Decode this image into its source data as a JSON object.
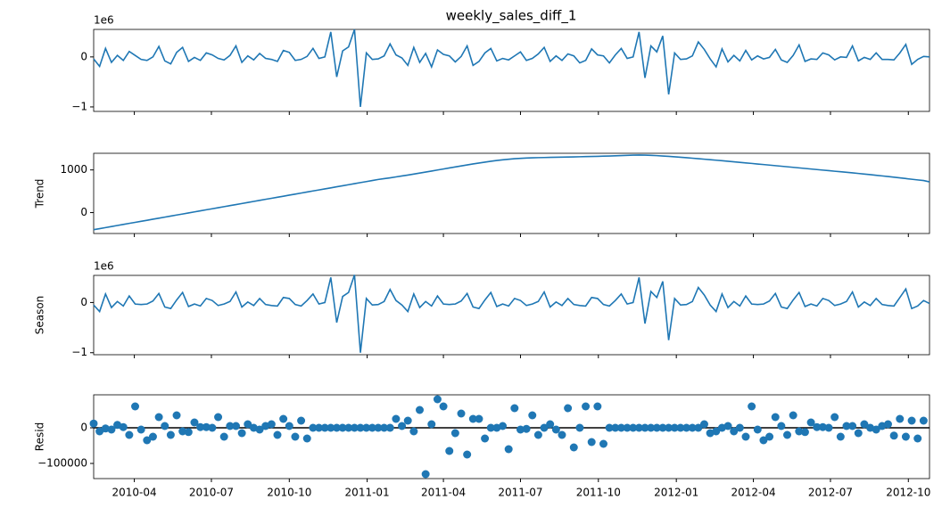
{
  "chart_data": [
    {
      "type": "line",
      "title": "weekly_sales_diff_1",
      "y_offset_label": "1e6",
      "color": "#1f77b4",
      "ylim": [
        -1.09,
        0.55
      ],
      "yticks": [
        {
          "value": -1,
          "label": "−1"
        },
        0
      ],
      "values": [
        -0.04,
        -0.19,
        0.17,
        -0.11,
        0.03,
        -0.07,
        0.11,
        0.03,
        -0.05,
        -0.07,
        0.0,
        0.21,
        -0.08,
        -0.14,
        0.09,
        0.19,
        -0.09,
        -0.01,
        -0.07,
        0.08,
        0.04,
        -0.03,
        -0.06,
        0.03,
        0.22,
        -0.11,
        0.02,
        -0.06,
        0.07,
        -0.03,
        -0.05,
        -0.09,
        0.13,
        0.09,
        -0.07,
        -0.05,
        0.01,
        0.17,
        -0.03,
        0.0,
        0.5,
        -0.4,
        0.12,
        0.2,
        0.55,
        -1.0,
        0.08,
        -0.05,
        -0.04,
        0.02,
        0.26,
        0.04,
        -0.02,
        -0.17,
        0.19,
        -0.11,
        0.07,
        -0.2,
        0.14,
        0.05,
        0.02,
        -0.1,
        0.01,
        0.22,
        -0.17,
        -0.09,
        0.08,
        0.17,
        -0.08,
        -0.03,
        -0.06,
        0.02,
        0.1,
        -0.07,
        -0.03,
        0.06,
        0.19,
        -0.09,
        0.02,
        -0.07,
        0.06,
        0.02,
        -0.12,
        -0.07,
        0.16,
        0.04,
        0.02,
        -0.12,
        0.04,
        0.17,
        -0.03,
        0.0,
        0.5,
        -0.42,
        0.22,
        0.1,
        0.42,
        -0.75,
        0.08,
        -0.05,
        -0.04,
        0.02,
        0.3,
        0.15,
        -0.04,
        -0.2,
        0.16,
        -0.1,
        0.03,
        -0.08,
        0.13,
        -0.06,
        0.02,
        -0.04,
        -0.01,
        0.15,
        -0.06,
        -0.11,
        0.03,
        0.24,
        -0.09,
        -0.04,
        -0.05,
        0.08,
        0.04,
        -0.06,
        0.0,
        -0.01,
        0.22,
        -0.08,
        -0.01,
        -0.05,
        0.08,
        -0.05,
        -0.05,
        -0.06,
        0.08,
        0.25,
        -0.15,
        -0.05,
        0.01,
        0.0
      ]
    },
    {
      "type": "line",
      "ylabel": "Trend",
      "color": "#1f77b4",
      "ylim": [
        -490,
        1390
      ],
      "yticks": [
        0,
        1000
      ],
      "values": [
        -400,
        -376,
        -351,
        -327,
        -302,
        -278,
        -253,
        -229,
        -204,
        -180,
        -155,
        -131,
        -106,
        -82,
        -57,
        -33,
        -8,
        17,
        41,
        66,
        90,
        115,
        139,
        164,
        188,
        213,
        237,
        262,
        286,
        311,
        335,
        360,
        384,
        409,
        433,
        458,
        482,
        507,
        531,
        556,
        580,
        605,
        629,
        654,
        678,
        703,
        727,
        752,
        776,
        795,
        815,
        836,
        858,
        880,
        903,
        926,
        950,
        974,
        998,
        1022,
        1046,
        1070,
        1094,
        1117,
        1140,
        1162,
        1183,
        1203,
        1221,
        1237,
        1251,
        1263,
        1272,
        1279,
        1284,
        1288,
        1291,
        1294,
        1297,
        1300,
        1303,
        1306,
        1309,
        1312,
        1315,
        1319,
        1323,
        1327,
        1332,
        1337,
        1342,
        1346,
        1350,
        1347,
        1342,
        1335,
        1327,
        1318,
        1308,
        1297,
        1286,
        1275,
        1264,
        1252,
        1240,
        1228,
        1216,
        1204,
        1191,
        1178,
        1165,
        1152,
        1139,
        1126,
        1113,
        1100,
        1087,
        1074,
        1061,
        1048,
        1035,
        1022,
        1009,
        996,
        983,
        970,
        957,
        944,
        931,
        917,
        903,
        889,
        875,
        860,
        845,
        830,
        814,
        798,
        782,
        766,
        751,
        720
      ]
    },
    {
      "type": "line",
      "ylabel": "Season",
      "y_offset_label": "1e6",
      "color": "#1f77b4",
      "ylim": [
        -1.04,
        0.54
      ],
      "yticks": [
        {
          "value": -1,
          "label": "−1"
        },
        0
      ],
      "values": [
        -0.05,
        -0.18,
        0.17,
        -0.1,
        0.02,
        -0.07,
        0.13,
        -0.03,
        -0.04,
        -0.03,
        0.03,
        0.18,
        -0.09,
        -0.12,
        0.05,
        0.2,
        -0.08,
        -0.03,
        -0.07,
        0.08,
        0.04,
        -0.06,
        -0.03,
        0.02,
        0.21,
        -0.09,
        0.01,
        -0.06,
        0.08,
        -0.04,
        -0.06,
        -0.07,
        0.1,
        0.08,
        -0.04,
        -0.07,
        0.04,
        0.17,
        -0.03,
        0.0,
        0.5,
        -0.4,
        0.12,
        0.2,
        0.55,
        -1.0,
        0.08,
        -0.05,
        -0.04,
        0.02,
        0.26,
        0.04,
        -0.05,
        -0.18,
        0.17,
        -0.1,
        0.02,
        -0.07,
        0.13,
        -0.03,
        -0.04,
        -0.03,
        0.03,
        0.18,
        -0.09,
        -0.12,
        0.05,
        0.2,
        -0.08,
        -0.03,
        -0.07,
        0.08,
        0.04,
        -0.06,
        -0.03,
        0.02,
        0.21,
        -0.09,
        0.01,
        -0.06,
        0.08,
        -0.04,
        -0.06,
        -0.07,
        0.1,
        0.08,
        -0.04,
        -0.07,
        0.04,
        0.17,
        -0.03,
        0.0,
        0.5,
        -0.42,
        0.22,
        0.1,
        0.42,
        -0.75,
        0.08,
        -0.05,
        -0.04,
        0.02,
        0.3,
        0.15,
        -0.05,
        -0.18,
        0.17,
        -0.1,
        0.02,
        -0.07,
        0.13,
        -0.03,
        -0.04,
        -0.03,
        0.03,
        0.18,
        -0.09,
        -0.12,
        0.05,
        0.2,
        -0.08,
        -0.03,
        -0.07,
        0.08,
        0.04,
        -0.06,
        -0.03,
        0.02,
        0.21,
        -0.09,
        0.01,
        -0.06,
        0.08,
        -0.04,
        -0.06,
        -0.07,
        0.1,
        0.27,
        -0.12,
        -0.07,
        0.04,
        -0.02
      ]
    },
    {
      "type": "scatter",
      "ylabel": "Resid",
      "color": "#1f77b4",
      "zero_line_color": "#000000",
      "ylim": [
        -142500,
        92500
      ],
      "yticks": [
        {
          "value": -100000,
          "label": "−100000"
        },
        0
      ],
      "xlim": [
        0,
        141
      ],
      "xticks": [
        {
          "value": 6.86,
          "label": "2010-04"
        },
        {
          "value": 19.86,
          "label": "2010-07"
        },
        {
          "value": 33,
          "label": "2010-10"
        },
        {
          "value": 46.14,
          "label": "2011-01"
        },
        {
          "value": 59,
          "label": "2011-04"
        },
        {
          "value": 72,
          "label": "2011-07"
        },
        {
          "value": 85.14,
          "label": "2011-10"
        },
        {
          "value": 98.29,
          "label": "2012-01"
        },
        {
          "value": 111.29,
          "label": "2012-04"
        },
        {
          "value": 124.29,
          "label": "2012-07"
        },
        {
          "value": 137.43,
          "label": "2012-10"
        }
      ],
      "values": [
        12000,
        -10000,
        -2000,
        -5000,
        8000,
        2000,
        -20000,
        60000,
        -5000,
        -35000,
        -25000,
        30000,
        5000,
        -20000,
        35000,
        -10000,
        -12000,
        15000,
        2000,
        2000,
        0,
        30000,
        -25000,
        5000,
        5000,
        -15000,
        10000,
        0,
        -5000,
        5000,
        10000,
        -20000,
        25000,
        5000,
        -25000,
        20000,
        -30000,
        0,
        0,
        0,
        0,
        0,
        0,
        0,
        0,
        0,
        0,
        0,
        0,
        0,
        0,
        25000,
        5000,
        20000,
        -10000,
        50000,
        -130000,
        10000,
        80000,
        60000,
        -65000,
        -15000,
        40000,
        -75000,
        25000,
        25000,
        -30000,
        0,
        0,
        5000,
        -60000,
        55000,
        -5000,
        -3000,
        35000,
        -20000,
        0,
        10000,
        -5000,
        -20000,
        55000,
        -55000,
        0,
        60000,
        -40000,
        60000,
        -45000,
        0,
        0,
        0,
        0,
        0,
        0,
        0,
        0,
        0,
        0,
        0,
        0,
        0,
        0,
        0,
        0,
        10000,
        -15000,
        -10000,
        0,
        5000,
        -10000,
        0,
        -25000,
        60000,
        -5000,
        -35000,
        -25000,
        30000,
        5000,
        -20000,
        35000,
        -10000,
        -12000,
        15000,
        2000,
        2000,
        0,
        30000,
        -25000,
        5000,
        5000,
        -15000,
        10000,
        0,
        -5000,
        5000,
        10000,
        -22000,
        25000,
        -25000,
        20000,
        -30000,
        20000
      ]
    }
  ]
}
